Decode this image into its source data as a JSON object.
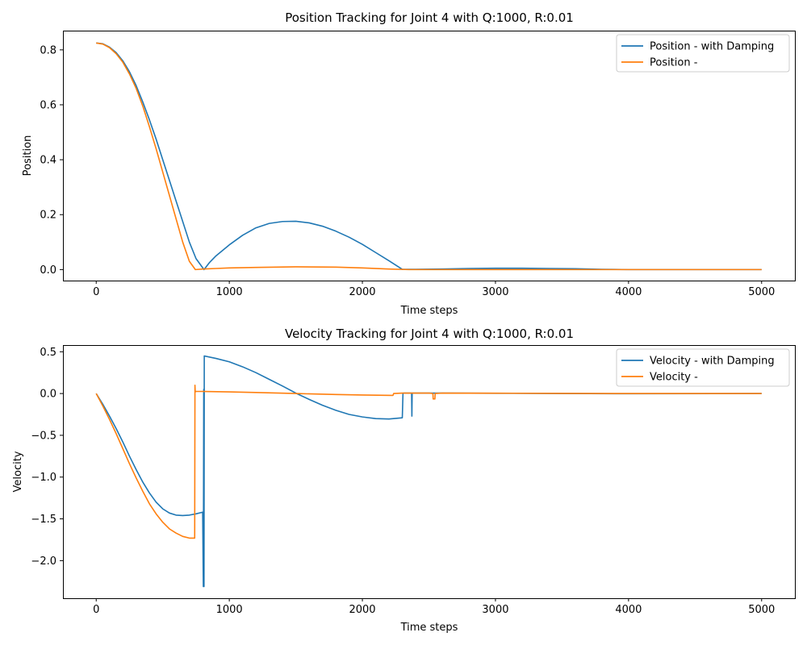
{
  "chart_data": [
    {
      "type": "line",
      "title": "Position Tracking for Joint 4 with Q:1000, R:0.01",
      "xlabel": "Time steps",
      "ylabel": "Position",
      "xlim": [
        -250,
        5250
      ],
      "ylim": [
        -0.04,
        0.87
      ],
      "xticks": [
        0,
        1000,
        2000,
        3000,
        4000,
        5000
      ],
      "yticks": [
        0.0,
        0.2,
        0.4,
        0.6,
        0.8
      ],
      "ytick_labels": [
        "0.0",
        "0.2",
        "0.4",
        "0.6",
        "0.8"
      ],
      "legend_position": "top-right",
      "series": [
        {
          "name": "Position - with Damping",
          "color": "#1f77b4",
          "x": [
            0,
            50,
            100,
            150,
            200,
            250,
            300,
            350,
            400,
            450,
            500,
            550,
            600,
            650,
            700,
            750,
            810,
            850,
            900,
            1000,
            1100,
            1200,
            1300,
            1400,
            1500,
            1600,
            1700,
            1800,
            1900,
            2000,
            2100,
            2200,
            2300,
            2400,
            2600,
            2800,
            3000,
            3200,
            3400,
            3600,
            3800,
            4000,
            4500,
            5000
          ],
          "values": [
            0.825,
            0.822,
            0.81,
            0.79,
            0.76,
            0.72,
            0.67,
            0.61,
            0.545,
            0.475,
            0.4,
            0.325,
            0.25,
            0.175,
            0.1,
            0.04,
            0.0,
            0.025,
            0.05,
            0.09,
            0.125,
            0.152,
            0.168,
            0.175,
            0.176,
            0.17,
            0.158,
            0.14,
            0.118,
            0.092,
            0.062,
            0.032,
            0.001,
            0.001,
            0.002,
            0.004,
            0.005,
            0.005,
            0.004,
            0.003,
            0.001,
            0.0,
            0.0,
            0.0
          ]
        },
        {
          "name": "Position -",
          "color": "#ff7f0e",
          "x": [
            0,
            50,
            100,
            150,
            200,
            250,
            300,
            350,
            400,
            450,
            500,
            550,
            600,
            650,
            700,
            745,
            800,
            900,
            1000,
            1200,
            1500,
            1800,
            2000,
            2200,
            2350,
            3000,
            4000,
            5000
          ],
          "values": [
            0.825,
            0.821,
            0.808,
            0.786,
            0.755,
            0.712,
            0.66,
            0.595,
            0.52,
            0.44,
            0.355,
            0.27,
            0.185,
            0.1,
            0.03,
            0.0,
            0.002,
            0.004,
            0.006,
            0.008,
            0.01,
            0.009,
            0.006,
            0.002,
            0.0,
            0.0,
            0.0,
            0.0
          ]
        }
      ]
    },
    {
      "type": "line",
      "title": "Velocity Tracking for Joint 4 with Q:1000, R:0.01",
      "xlabel": "Time steps",
      "ylabel": "Velocity",
      "xlim": [
        -250,
        5250
      ],
      "ylim": [
        -2.45,
        0.58
      ],
      "xticks": [
        0,
        1000,
        2000,
        3000,
        4000,
        5000
      ],
      "yticks": [
        -2.0,
        -1.5,
        -1.0,
        -0.5,
        0.0,
        0.5
      ],
      "ytick_labels": [
        "−2.0",
        "−1.5",
        "−1.0",
        "−0.5",
        "0.0",
        "0.5"
      ],
      "legend_position": "top-right",
      "series": [
        {
          "name": "Velocity - with Damping",
          "color": "#1f77b4",
          "x": [
            0,
            50,
            100,
            150,
            200,
            250,
            300,
            350,
            400,
            450,
            500,
            550,
            600,
            650,
            700,
            750,
            800,
            805,
            808,
            810,
            812,
            900,
            1000,
            1100,
            1200,
            1300,
            1400,
            1500,
            1600,
            1700,
            1800,
            1900,
            2000,
            2100,
            2200,
            2300,
            2305,
            2310,
            2370,
            2372,
            2374,
            2376,
            2400,
            2600,
            2800,
            3000,
            3500,
            4000,
            5000
          ],
          "values": [
            0.0,
            -0.13,
            -0.27,
            -0.42,
            -0.58,
            -0.75,
            -0.91,
            -1.06,
            -1.19,
            -1.3,
            -1.38,
            -1.43,
            -1.455,
            -1.46,
            -1.455,
            -1.44,
            -1.42,
            -2.31,
            0.05,
            -2.31,
            0.45,
            0.42,
            0.38,
            0.32,
            0.25,
            0.17,
            0.09,
            0.005,
            -0.07,
            -0.14,
            -0.2,
            -0.25,
            -0.28,
            -0.3,
            -0.305,
            -0.29,
            0.0,
            0.005,
            0.005,
            -0.27,
            0.005,
            0.005,
            0.005,
            0.005,
            0.004,
            0.003,
            0.0,
            -0.002,
            0.0
          ]
        },
        {
          "name": "Velocity -",
          "color": "#ff7f0e",
          "x": [
            0,
            50,
            100,
            150,
            200,
            250,
            300,
            350,
            400,
            450,
            500,
            550,
            600,
            650,
            700,
            740,
            742,
            744,
            750,
            800,
            1000,
            1200,
            1500,
            1800,
            2000,
            2230,
            2235,
            2300,
            2500,
            2530,
            2532,
            2545,
            2547,
            2600,
            3000,
            3500,
            4000,
            5000
          ],
          "values": [
            0.0,
            -0.15,
            -0.31,
            -0.48,
            -0.66,
            -0.84,
            -1.01,
            -1.17,
            -1.32,
            -1.44,
            -1.54,
            -1.62,
            -1.67,
            -1.71,
            -1.73,
            -1.73,
            0.1,
            0.02,
            0.025,
            0.025,
            0.02,
            0.012,
            0.0,
            -0.012,
            -0.018,
            -0.022,
            0.0,
            0.005,
            0.005,
            0.0,
            -0.065,
            -0.065,
            0.0,
            0.005,
            0.004,
            0.002,
            0.0,
            0.0
          ]
        }
      ]
    }
  ]
}
